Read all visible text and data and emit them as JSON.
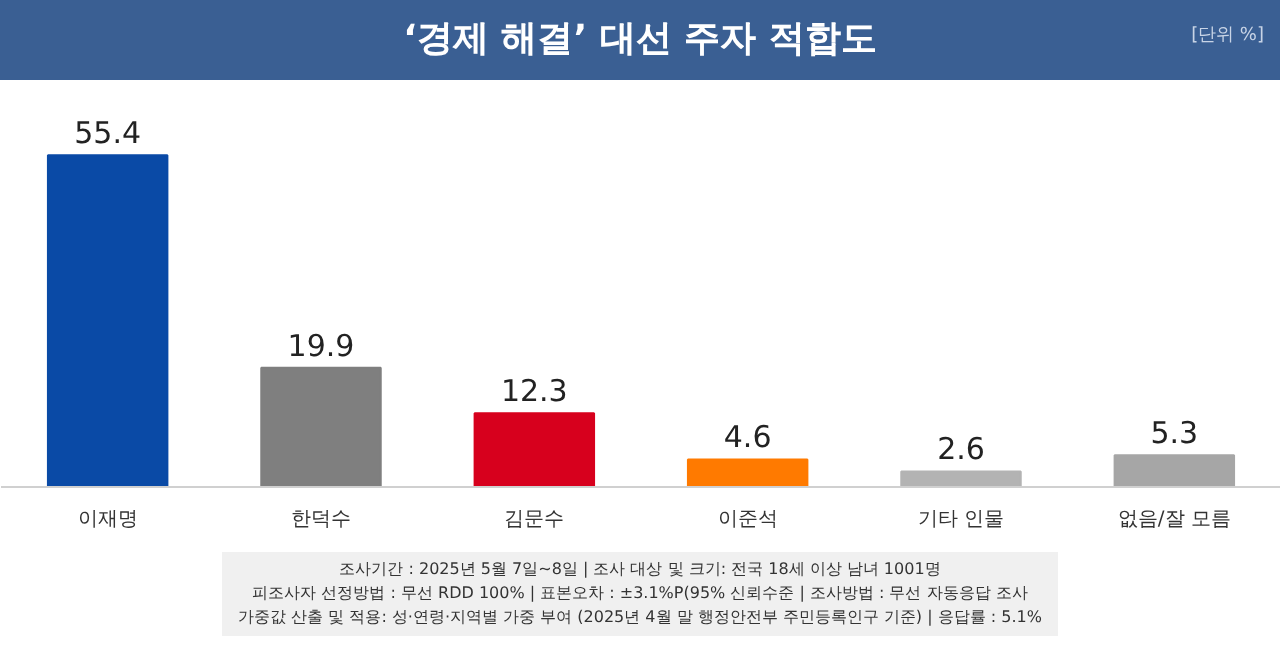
{
  "chart_data": {
    "type": "bar",
    "title": "‘경제 해결’ 대선 주자 적합도",
    "categories": [
      "이재명",
      "한덕수",
      "김문수",
      "이준석",
      "기타 인물",
      "없음/잘 모름"
    ],
    "values": [
      55.4,
      19.9,
      12.3,
      4.6,
      2.6,
      5.3
    ],
    "colors": [
      "#0a4aa6",
      "#7f7f7f",
      "#d7001d",
      "#ff7a00",
      "#b3b3b3",
      "#a6a6a6"
    ],
    "data_labels": true,
    "grid": false,
    "annotations": [
      "[단위 %]",
      "조사기간 : 2025년 5월 7일~8일 | 조사 대상 및 크기: 전국 18세 이상 남녀 1001명",
      "피조사자 선정방법 : 무선 RDD 100% | 표본오차 : ±3.1%P(95% 신뢰수준 | 조사방법 : 무선 자동응답 조사",
      "가중값 산출 및 적용: 성·연령·지역별 가중 부여 (2025년 4월 말 행정안전부 주민등록인구 기준) | 응답률 : 5.1%"
    ]
  }
}
